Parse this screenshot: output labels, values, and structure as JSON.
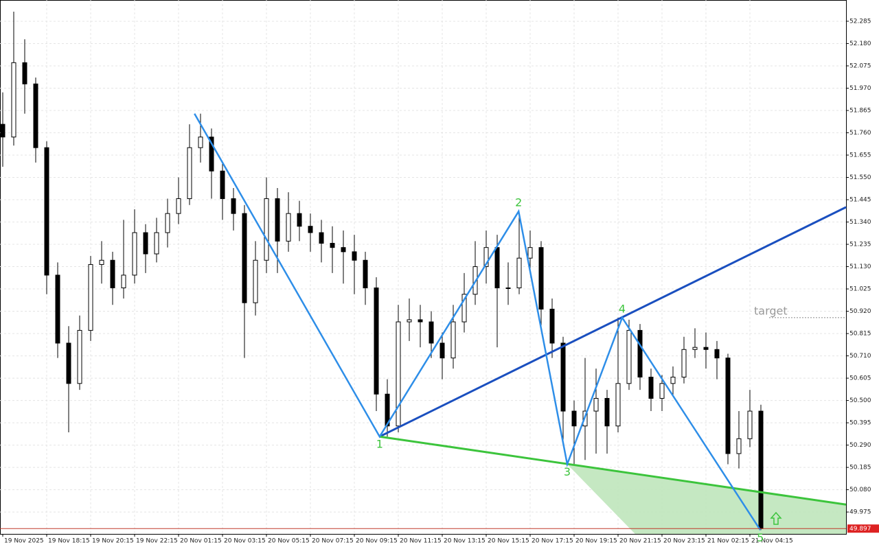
{
  "chart_data": {
    "type": "candlestick",
    "xlim": [
      -0.5,
      153.5
    ],
    "ylim": [
      49.872,
      52.385
    ],
    "xticks": [
      {
        "value": 0,
        "label": "19 Nov 2025"
      },
      {
        "value": 8,
        "label": "19 Nov 18:15"
      },
      {
        "value": 16,
        "label": "19 Nov 20:15"
      },
      {
        "value": 24,
        "label": "19 Nov 22:15"
      },
      {
        "value": 32,
        "label": "20 Nov 01:15"
      },
      {
        "value": 40,
        "label": "20 Nov 03:15"
      },
      {
        "value": 48,
        "label": "20 Nov 05:15"
      },
      {
        "value": 56,
        "label": "20 Nov 07:15"
      },
      {
        "value": 64,
        "label": "20 Nov 09:15"
      },
      {
        "value": 72,
        "label": "20 Nov 11:15"
      },
      {
        "value": 80,
        "label": "20 Nov 13:15"
      },
      {
        "value": 88,
        "label": "20 Nov 15:15"
      },
      {
        "value": 96,
        "label": "20 Nov 17:15"
      },
      {
        "value": 104,
        "label": "20 Nov 19:15"
      },
      {
        "value": 112,
        "label": "20 Nov 21:15"
      },
      {
        "value": 120,
        "label": "20 Nov 23:15"
      },
      {
        "value": 128,
        "label": "21 Nov 02:15"
      },
      {
        "value": 136,
        "label": "21 Nov 04:15"
      }
    ],
    "yticks": [
      52.285,
      {
        "value": 52.18,
        "label": "52.180"
      },
      52.075,
      {
        "value": 51.97,
        "label": "51.970"
      },
      51.865,
      {
        "value": 51.76,
        "label": "51.760"
      },
      51.655,
      {
        "value": 51.55,
        "label": "51.550"
      },
      51.445,
      {
        "value": 51.34,
        "label": "51.340"
      },
      51.235,
      {
        "value": 51.13,
        "label": "51.130"
      },
      51.025,
      {
        "value": 50.92,
        "label": "50.920"
      },
      50.815,
      {
        "value": 50.71,
        "label": "50.710"
      },
      50.605,
      {
        "value": 50.5,
        "label": "50.500"
      },
      50.395,
      {
        "value": 50.29,
        "label": "50.290"
      },
      50.185,
      {
        "value": 50.08,
        "label": "50.080"
      },
      49.975
    ],
    "grid": true,
    "x": [
      0,
      2,
      4,
      6,
      8,
      10,
      12,
      14,
      16,
      18,
      20,
      22,
      24,
      26,
      28,
      30,
      32,
      34,
      36,
      38,
      40,
      42,
      44,
      46,
      48,
      50,
      52,
      54,
      56,
      58,
      60,
      62,
      64,
      66,
      68,
      70,
      72,
      74,
      76,
      78,
      80,
      82,
      84,
      86,
      88,
      90,
      92,
      94,
      96,
      98,
      100,
      102,
      104,
      106,
      108,
      110,
      112,
      114,
      116,
      118,
      120,
      122,
      124,
      126,
      128,
      130,
      132,
      134,
      136,
      138
    ],
    "ohlc": [
      [
        51.8,
        51.95,
        51.6,
        51.74
      ],
      [
        51.74,
        52.33,
        51.7,
        52.09
      ],
      [
        52.09,
        52.2,
        51.85,
        51.99
      ],
      [
        51.99,
        52.02,
        51.62,
        51.69
      ],
      [
        51.69,
        51.72,
        51.0,
        51.09
      ],
      [
        51.09,
        51.15,
        50.7,
        50.77
      ],
      [
        50.77,
        50.85,
        50.35,
        50.58
      ],
      [
        50.58,
        50.9,
        50.55,
        50.83
      ],
      [
        50.83,
        51.18,
        50.78,
        51.14
      ],
      [
        51.14,
        51.25,
        51.05,
        51.16
      ],
      [
        51.16,
        51.2,
        50.95,
        51.03
      ],
      [
        51.03,
        51.35,
        50.98,
        51.09
      ],
      [
        51.09,
        51.4,
        51.05,
        51.29
      ],
      [
        51.29,
        51.33,
        51.1,
        51.19
      ],
      [
        51.19,
        51.36,
        51.15,
        51.29
      ],
      [
        51.29,
        51.45,
        51.22,
        51.38
      ],
      [
        51.38,
        51.55,
        51.33,
        51.45
      ],
      [
        51.45,
        51.8,
        51.42,
        51.69
      ],
      [
        51.69,
        51.85,
        51.62,
        51.74
      ],
      [
        51.74,
        51.78,
        51.45,
        51.58
      ],
      [
        51.58,
        51.62,
        51.35,
        51.45
      ],
      [
        51.45,
        51.5,
        51.3,
        51.38
      ],
      [
        51.38,
        51.42,
        50.7,
        50.96
      ],
      [
        50.96,
        51.25,
        50.9,
        51.16
      ],
      [
        51.16,
        51.55,
        51.1,
        51.45
      ],
      [
        51.45,
        51.5,
        51.1,
        51.25
      ],
      [
        51.25,
        51.48,
        51.2,
        51.38
      ],
      [
        51.38,
        51.44,
        51.25,
        51.32
      ],
      [
        51.32,
        51.38,
        51.2,
        51.29
      ],
      [
        51.29,
        51.35,
        51.15,
        51.24
      ],
      [
        51.24,
        51.32,
        51.1,
        51.22
      ],
      [
        51.22,
        51.3,
        51.05,
        51.2
      ],
      [
        51.2,
        51.28,
        51.0,
        51.16
      ],
      [
        51.16,
        51.2,
        50.95,
        51.03
      ],
      [
        51.03,
        51.08,
        50.45,
        50.53
      ],
      [
        50.53,
        50.6,
        50.33,
        50.38
      ],
      [
        50.38,
        50.95,
        50.35,
        50.87
      ],
      [
        50.87,
        50.98,
        50.78,
        50.88
      ],
      [
        50.88,
        50.95,
        50.75,
        50.87
      ],
      [
        50.87,
        50.92,
        50.7,
        50.77
      ],
      [
        50.77,
        50.82,
        50.6,
        50.7
      ],
      [
        50.7,
        50.95,
        50.65,
        50.87
      ],
      [
        50.87,
        51.1,
        50.82,
        51.0
      ],
      [
        51.0,
        51.25,
        50.95,
        51.13
      ],
      [
        51.13,
        51.3,
        51.05,
        51.22
      ],
      [
        51.22,
        51.28,
        50.75,
        51.03
      ],
      [
        51.03,
        51.15,
        50.95,
        51.03
      ],
      [
        51.03,
        51.39,
        51.0,
        51.17
      ],
      [
        51.17,
        51.3,
        51.1,
        51.22
      ],
      [
        51.22,
        51.25,
        50.85,
        50.93
      ],
      [
        50.93,
        50.98,
        50.7,
        50.77
      ],
      [
        50.77,
        50.8,
        50.3,
        50.45
      ],
      [
        50.45,
        50.5,
        50.2,
        50.38
      ],
      [
        50.38,
        50.7,
        50.22,
        50.45
      ],
      [
        50.45,
        50.65,
        50.25,
        50.51
      ],
      [
        50.51,
        50.55,
        50.25,
        50.38
      ],
      [
        50.38,
        50.89,
        50.35,
        50.58
      ],
      [
        50.58,
        50.88,
        50.55,
        50.83
      ],
      [
        50.83,
        50.86,
        50.55,
        50.61
      ],
      [
        50.61,
        50.65,
        50.45,
        50.51
      ],
      [
        50.51,
        50.62,
        50.45,
        50.58
      ],
      [
        50.58,
        50.66,
        50.52,
        50.61
      ],
      [
        50.61,
        50.8,
        50.58,
        50.74
      ],
      [
        50.74,
        50.84,
        50.7,
        50.75
      ],
      [
        50.75,
        50.82,
        50.65,
        50.74
      ],
      [
        50.74,
        50.78,
        50.6,
        50.7
      ],
      [
        50.7,
        50.72,
        50.2,
        50.25
      ],
      [
        50.25,
        50.45,
        50.18,
        50.32
      ],
      [
        50.32,
        50.55,
        50.28,
        50.45
      ],
      [
        50.45,
        50.48,
        49.89,
        49.897
      ]
    ],
    "pattern": {
      "color": "#2e8ee8",
      "label_color": "#3cc43c",
      "x": [
        34.9,
        68.6,
        93.9,
        102.75,
        112.75,
        137.9
      ],
      "y": [
        51.85,
        50.33,
        51.39,
        50.2,
        50.89,
        49.89
      ],
      "labels": [
        null,
        "1",
        "2",
        "3",
        "4",
        "5"
      ]
    },
    "upper_line": {
      "color": "#1a4fbf",
      "x": [
        68.6,
        153.5
      ],
      "y": [
        50.33,
        51.41
      ]
    },
    "lower_line": {
      "color": "#3cc43c",
      "x": [
        68.6,
        153.5
      ],
      "y": [
        50.33,
        50.01
      ]
    },
    "zone": {
      "color": "#bfe6bb",
      "x": [
        102.75,
        115.1,
        153.5,
        153.5
      ],
      "y": [
        50.2,
        49.872,
        49.872,
        50.01
      ]
    },
    "target": {
      "label": "target",
      "value": 50.89
    },
    "last_price": 49.897
  }
}
